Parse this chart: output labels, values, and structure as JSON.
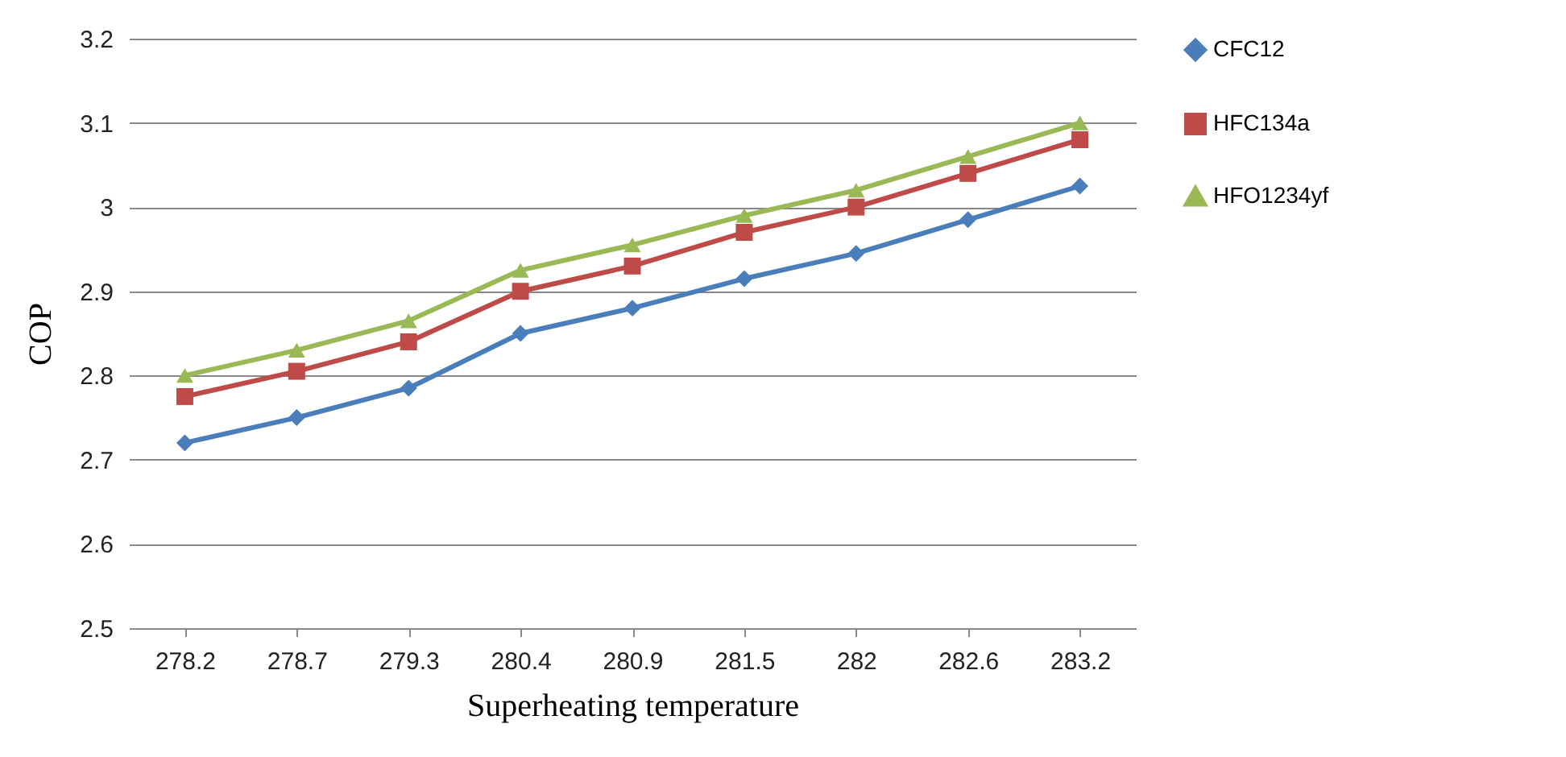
{
  "chart_data": {
    "type": "line",
    "xlabel": "Superheating temperature",
    "ylabel": "COP",
    "categories": [
      "278.2",
      "278.7",
      "279.3",
      "280.4",
      "280.9",
      "281.5",
      "282",
      "282.6",
      "283.2"
    ],
    "series": [
      {
        "name": "CFC12",
        "color": "#4a7ebb",
        "marker": "diamond",
        "values": [
          2.72,
          2.75,
          2.785,
          2.85,
          2.88,
          2.915,
          2.945,
          2.985,
          3.025
        ]
      },
      {
        "name": "HFC134a",
        "color": "#be4b48",
        "marker": "square",
        "values": [
          2.775,
          2.805,
          2.84,
          2.9,
          2.93,
          2.97,
          3.0,
          3.04,
          3.08
        ]
      },
      {
        "name": "HFO1234yf",
        "color": "#98b954",
        "marker": "triangle",
        "values": [
          2.8,
          2.83,
          2.865,
          2.925,
          2.955,
          2.99,
          3.02,
          3.06,
          3.1
        ]
      }
    ],
    "ylim": [
      2.5,
      3.2
    ],
    "yticks": [
      2.5,
      2.6,
      2.7,
      2.8,
      2.9,
      3,
      3.1,
      3.2
    ],
    "grid": "y",
    "legend": "right",
    "line_style": "solid"
  }
}
